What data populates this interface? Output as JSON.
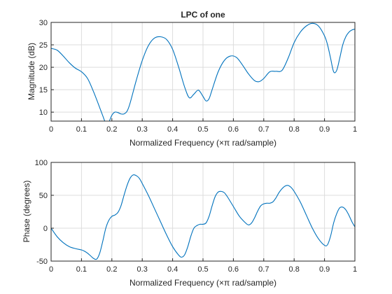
{
  "chart_data": [
    {
      "type": "line",
      "title": "LPC of one",
      "xlabel": "Normalized Frequency  (×π rad/sample)",
      "ylabel": "Magnitude (dB)",
      "xlim": [
        0,
        1
      ],
      "ylim": [
        8,
        30
      ],
      "xticks": [
        0,
        0.1,
        0.2,
        0.3,
        0.4,
        0.5,
        0.6,
        0.7,
        0.8,
        0.9,
        1
      ],
      "xtick_labels": [
        "0",
        "0.1",
        "0.2",
        "0.3",
        "0.4",
        "0.5",
        "0.6",
        "0.7",
        "0.8",
        "0.9",
        "1"
      ],
      "yticks": [
        10,
        15,
        20,
        25,
        30
      ],
      "ytick_labels": [
        "10",
        "15",
        "20",
        "25",
        "30"
      ],
      "grid": true,
      "series": [
        {
          "color": "#0072bd",
          "x": [
            0,
            0.02,
            0.04,
            0.06,
            0.08,
            0.1,
            0.12,
            0.14,
            0.16,
            0.17,
            0.18,
            0.19,
            0.2,
            0.21,
            0.22,
            0.23,
            0.24,
            0.25,
            0.26,
            0.28,
            0.3,
            0.32,
            0.34,
            0.36,
            0.38,
            0.4,
            0.42,
            0.44,
            0.455,
            0.47,
            0.485,
            0.5,
            0.51,
            0.52,
            0.53,
            0.55,
            0.57,
            0.59,
            0.61,
            0.63,
            0.65,
            0.67,
            0.685,
            0.7,
            0.72,
            0.74,
            0.76,
            0.78,
            0.8,
            0.82,
            0.84,
            0.86,
            0.88,
            0.9,
            0.91,
            0.92,
            0.93,
            0.94,
            0.95,
            0.96,
            0.97,
            0.98,
            0.99,
            1
          ],
          "y": [
            24.2,
            23.8,
            22.5,
            21.0,
            19.8,
            19.0,
            17.5,
            14.5,
            11.0,
            9.2,
            7.6,
            7.8,
            9.3,
            10.0,
            9.9,
            9.6,
            9.6,
            10.2,
            12.0,
            17.0,
            21.5,
            24.8,
            26.5,
            26.8,
            26.2,
            24.0,
            20.0,
            15.5,
            13.2,
            14.0,
            14.9,
            13.5,
            12.5,
            13.0,
            15.0,
            19.0,
            21.5,
            22.5,
            22.2,
            20.5,
            18.5,
            17.0,
            16.8,
            17.5,
            19.0,
            19.1,
            19.3,
            22.0,
            25.5,
            27.8,
            29.2,
            29.8,
            29.2,
            27.0,
            25.0,
            22.0,
            19.0,
            19.3,
            22.0,
            25.0,
            26.8,
            27.8,
            28.3,
            28.5
          ]
        }
      ]
    },
    {
      "type": "line",
      "title": "",
      "xlabel": "Normalized Frequency  (×π rad/sample)",
      "ylabel": "Phase (degrees)",
      "xlim": [
        0,
        1
      ],
      "ylim": [
        -50,
        100
      ],
      "xticks": [
        0,
        0.1,
        0.2,
        0.3,
        0.4,
        0.5,
        0.6,
        0.7,
        0.8,
        0.9,
        1
      ],
      "xtick_labels": [
        "0",
        "0.1",
        "0.2",
        "0.3",
        "0.4",
        "0.5",
        "0.6",
        "0.7",
        "0.8",
        "0.9",
        "1"
      ],
      "yticks": [
        -50,
        0,
        50,
        100
      ],
      "ytick_labels": [
        "-50",
        "0",
        "50",
        "100"
      ],
      "grid": true,
      "series": [
        {
          "color": "#0072bd",
          "x": [
            0,
            0.02,
            0.04,
            0.06,
            0.08,
            0.1,
            0.11,
            0.12,
            0.13,
            0.14,
            0.15,
            0.16,
            0.17,
            0.18,
            0.19,
            0.2,
            0.21,
            0.22,
            0.23,
            0.24,
            0.25,
            0.26,
            0.27,
            0.28,
            0.29,
            0.3,
            0.32,
            0.34,
            0.36,
            0.38,
            0.4,
            0.42,
            0.43,
            0.44,
            0.45,
            0.46,
            0.47,
            0.48,
            0.49,
            0.5,
            0.51,
            0.52,
            0.53,
            0.54,
            0.55,
            0.56,
            0.57,
            0.58,
            0.6,
            0.62,
            0.64,
            0.65,
            0.66,
            0.67,
            0.68,
            0.69,
            0.7,
            0.71,
            0.72,
            0.73,
            0.74,
            0.75,
            0.76,
            0.77,
            0.78,
            0.79,
            0.8,
            0.82,
            0.84,
            0.86,
            0.88,
            0.9,
            0.91,
            0.92,
            0.93,
            0.94,
            0.95,
            0.96,
            0.97,
            0.98,
            0.99,
            1
          ],
          "y": [
            0,
            -13,
            -22,
            -28,
            -31,
            -33,
            -35,
            -38,
            -42,
            -46,
            -47,
            -38,
            -20,
            0,
            12,
            18,
            20,
            24,
            34,
            50,
            65,
            76,
            81,
            80,
            76,
            68,
            50,
            30,
            10,
            -10,
            -28,
            -41,
            -44,
            -40,
            -28,
            -12,
            0,
            4,
            6,
            6,
            8,
            18,
            34,
            48,
            55,
            56,
            54,
            48,
            33,
            18,
            8,
            5,
            8,
            16,
            26,
            34,
            37,
            38,
            38,
            40,
            46,
            54,
            60,
            64,
            65,
            62,
            56,
            40,
            20,
            0,
            -16,
            -26,
            -25,
            -12,
            8,
            22,
            31,
            32,
            28,
            20,
            10,
            2
          ]
        }
      ]
    }
  ]
}
